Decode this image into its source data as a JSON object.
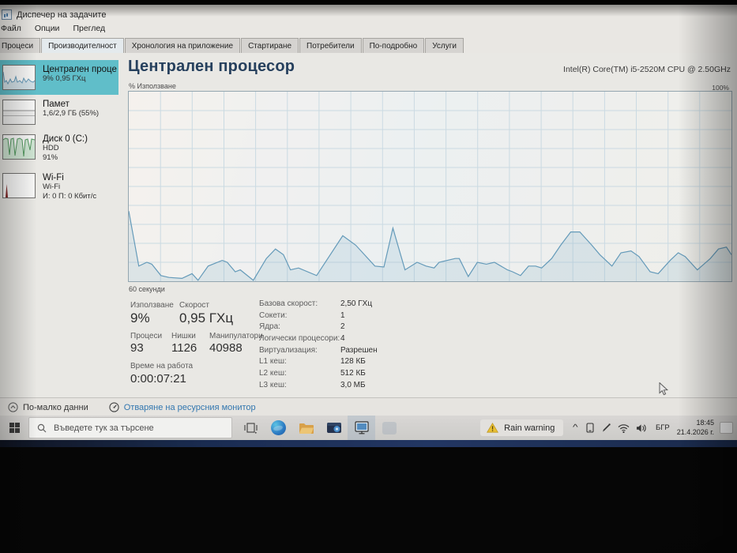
{
  "window": {
    "title": "Диспечер на задачите",
    "menu": [
      "Файл",
      "Опции",
      "Преглед"
    ],
    "tabs": [
      {
        "label": "Процеси",
        "active": false
      },
      {
        "label": "Производителност",
        "active": true
      },
      {
        "label": "Хронология на приложение",
        "active": false
      },
      {
        "label": "Стартиране",
        "active": false
      },
      {
        "label": "Потребители",
        "active": false
      },
      {
        "label": "По-подробно",
        "active": false
      },
      {
        "label": "Услуги",
        "active": false
      }
    ]
  },
  "sidebar": {
    "items": [
      {
        "id": "cpu",
        "title": "Централен процесор",
        "lines": [
          "9% 0,95 ГХц"
        ],
        "thumb": "cpu-graph",
        "selected": true
      },
      {
        "id": "memory",
        "title": "Памет",
        "lines": [
          "1,6/2,9 ГБ (55%)"
        ],
        "thumb": "memory-graph",
        "selected": false
      },
      {
        "id": "disk",
        "title": "Диск 0 (C:)",
        "lines": [
          "HDD",
          "91%"
        ],
        "thumb": "disk-graph",
        "selected": false
      },
      {
        "id": "wifi",
        "title": "Wi-Fi",
        "lines": [
          "Wi-Fi",
          "И: 0 П: 0 Кбит/с"
        ],
        "thumb": "wifi-graph",
        "selected": false
      }
    ]
  },
  "main": {
    "title": "Централен процесор",
    "cpu_name": "Intel(R) Core(TM) i5-2520M CPU @ 2.50GHz",
    "chart_top_label": "% Използване",
    "chart_max_label": "100%",
    "chart_bottom_label": "60 секунди",
    "stats": {
      "usage": {
        "label": "Използване",
        "value": "9%"
      },
      "speed": {
        "label": "Скорост",
        "value": "0,95 ГХц"
      },
      "processes": {
        "label": "Процеси",
        "value": "93"
      },
      "threads": {
        "label": "Нишки",
        "value": "1126"
      },
      "handles": {
        "label": "Манипулатори",
        "value": "40988"
      },
      "uptime": {
        "label": "Време на работа",
        "value": "0:00:07:21"
      },
      "right": [
        {
          "label": "Базова скорост:",
          "value": "2,50 ГХц"
        },
        {
          "label": "Сокети:",
          "value": "1"
        },
        {
          "label": "Ядра:",
          "value": "2"
        },
        {
          "label": "Логически процесори:",
          "value": "4"
        },
        {
          "label": "Виртуализация:",
          "value": "Разрешен"
        },
        {
          "label": "L1 кеш:",
          "value": "128 КБ"
        },
        {
          "label": "L2 кеш:",
          "value": "512 КБ"
        },
        {
          "label": "L3 кеш:",
          "value": "3,0 МБ"
        }
      ]
    }
  },
  "footer": {
    "less_details": "По-малко данни",
    "resource_monitor": "Отваряне на ресурсния монитор"
  },
  "taskbar": {
    "search_placeholder": "Въведете тук за търсене",
    "pinned_icons": [
      "task-view-icon",
      "edge-icon",
      "file-explorer-icon",
      "wallet-app-icon",
      "task-manager-icon",
      "faded-app-icon"
    ],
    "widget_text": "Rain warning",
    "tray_icons": [
      "chevron-up-icon",
      "tablet-icon",
      "pen-icon",
      "wifi-icon",
      "speaker-icon"
    ],
    "language": "БГР",
    "time": "18:45",
    "date": "21.4.2026 г."
  },
  "colors": {
    "sidebar_selected": "#54c3d0",
    "chart_line": "#5d9cc0",
    "chart_fill": "rgba(125,178,208,0.20)",
    "chart_grid": "#cbdde7",
    "link": "#2878ba",
    "heading": "#203e61",
    "taskbar_strip": "#1d3468"
  },
  "chart_data": {
    "type": "area",
    "title": "% Използване",
    "ylabel": "CPU usage %",
    "xlabel": "seconds (window of 60)",
    "ylim": [
      0,
      100
    ],
    "x_range_seconds": 60,
    "grid": true,
    "points": [
      [
        0,
        37
      ],
      [
        1,
        8
      ],
      [
        1.8,
        10
      ],
      [
        2.3,
        9
      ],
      [
        3.2,
        3
      ],
      [
        4,
        2
      ],
      [
        5.3,
        1.5
      ],
      [
        6.3,
        4
      ],
      [
        6.9,
        0.5
      ],
      [
        7.9,
        8
      ],
      [
        9.3,
        11
      ],
      [
        9.8,
        10
      ],
      [
        10.6,
        5
      ],
      [
        11.1,
        6
      ],
      [
        12.4,
        0.5
      ],
      [
        13.7,
        12
      ],
      [
        14.6,
        17
      ],
      [
        15.4,
        14
      ],
      [
        16.1,
        6
      ],
      [
        16.9,
        7
      ],
      [
        18.7,
        3
      ],
      [
        21.3,
        24
      ],
      [
        22.6,
        19
      ],
      [
        24.5,
        8
      ],
      [
        25.4,
        7.5
      ],
      [
        26.3,
        28
      ],
      [
        27.5,
        6
      ],
      [
        28.7,
        10
      ],
      [
        29.6,
        8
      ],
      [
        30.4,
        7
      ],
      [
        30.9,
        10
      ],
      [
        32.5,
        12
      ],
      [
        32.9,
        12
      ],
      [
        33.8,
        2.5
      ],
      [
        34.7,
        10
      ],
      [
        35.6,
        9
      ],
      [
        36.4,
        10
      ],
      [
        37.7,
        6
      ],
      [
        38.2,
        5
      ],
      [
        39,
        3
      ],
      [
        39.8,
        8
      ],
      [
        40.5,
        8
      ],
      [
        41.1,
        7
      ],
      [
        42.1,
        12
      ],
      [
        43,
        19
      ],
      [
        44,
        26
      ],
      [
        44.9,
        26
      ],
      [
        46.1,
        19
      ],
      [
        46.9,
        14
      ],
      [
        48.1,
        8
      ],
      [
        49,
        15
      ],
      [
        50,
        16
      ],
      [
        50.8,
        13
      ],
      [
        51.9,
        5
      ],
      [
        52.7,
        4
      ],
      [
        53.9,
        11
      ],
      [
        54.7,
        15
      ],
      [
        55.4,
        13
      ],
      [
        56.6,
        6
      ],
      [
        57.9,
        12
      ],
      [
        58.7,
        17
      ],
      [
        59.5,
        18
      ],
      [
        60,
        14
      ]
    ]
  }
}
